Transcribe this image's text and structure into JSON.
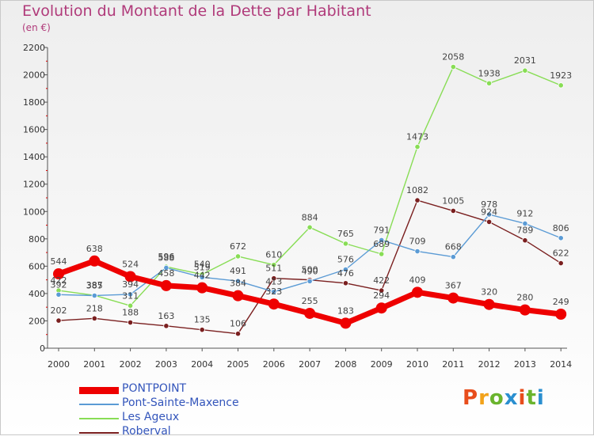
{
  "header": {
    "title": "Evolution du Montant de la Dette par Habitant",
    "unit": "(en €)"
  },
  "logo": {
    "text": "Proxiti",
    "colors": [
      "#e84d1c",
      "#f2a21a",
      "#6ab42d",
      "#2a8fd0",
      "#e84d1c",
      "#6ab42d",
      "#2a8fd0"
    ]
  },
  "chart_data": {
    "type": "line",
    "title": "Evolution du Montant de la Dette par Habitant",
    "ylabel": "(en €)",
    "xlabel": "",
    "x": [
      "2000",
      "2001",
      "2002",
      "2003",
      "2004",
      "2005",
      "2006",
      "2007",
      "2008",
      "2009",
      "2010",
      "2011",
      "2012",
      "2013",
      "2014"
    ],
    "ylim": [
      0,
      2200
    ],
    "yticks": [
      0,
      200,
      400,
      600,
      800,
      1000,
      1200,
      1400,
      1600,
      1800,
      2000,
      2200
    ],
    "grid": false,
    "legend_position": "bottom-left",
    "series": [
      {
        "name": "PONTPOINT",
        "color": "#ee0000",
        "values": [
          544,
          638,
          524,
          458,
          442,
          384,
          323,
          255,
          183,
          294,
          409,
          367,
          320,
          280,
          249
        ]
      },
      {
        "name": "Pont-Sainte-Maxence",
        "color": "#5b9bd5",
        "values": [
          392,
          385,
          394,
          588,
          519,
          491,
          413,
          490,
          576,
          791,
          709,
          668,
          978,
          912,
          806
        ]
      },
      {
        "name": "Les Ageux",
        "color": "#88dd55",
        "values": [
          422,
          387,
          311,
          596,
          540,
          672,
          610,
          884,
          765,
          689,
          1473,
          2058,
          1938,
          2031,
          1923
        ]
      },
      {
        "name": "Roberval",
        "color": "#7a1f1f",
        "values": [
          202,
          218,
          188,
          163,
          135,
          106,
          511,
          500,
          476,
          422,
          1082,
          1005,
          924,
          789,
          622
        ]
      }
    ]
  }
}
